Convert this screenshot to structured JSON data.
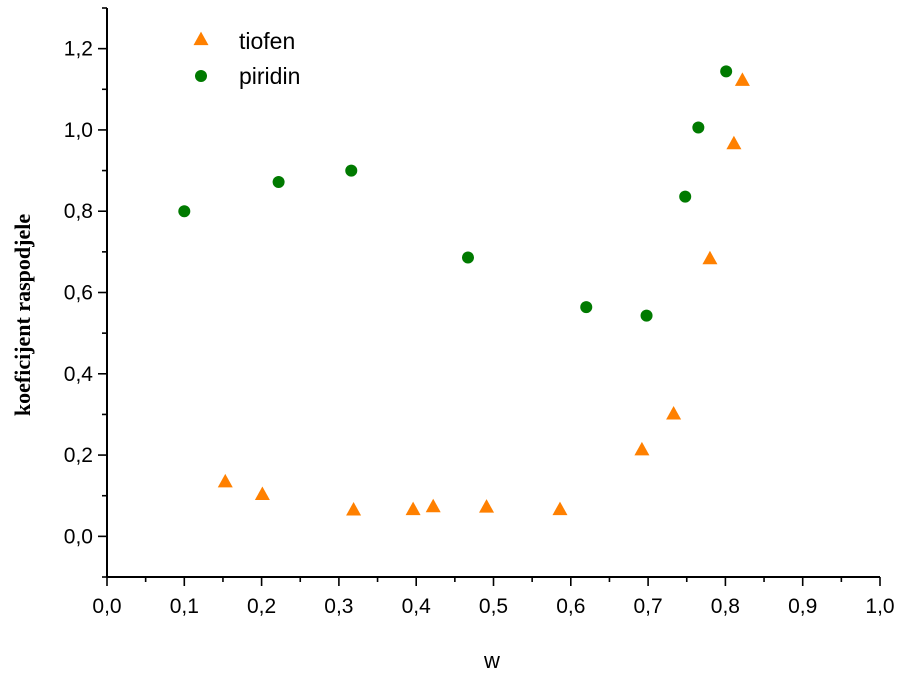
{
  "chart_data": {
    "type": "scatter",
    "title": "",
    "xlabel": "w",
    "ylabel": "koeficijent raspodjele",
    "xlim": [
      0.0,
      1.0
    ],
    "ylim": [
      -0.1,
      1.3
    ],
    "x_ticks": [
      "0,0",
      "0,1",
      "0,2",
      "0,3",
      "0,4",
      "0,5",
      "0,6",
      "0,7",
      "0,8",
      "0,9",
      "1,0"
    ],
    "y_ticks": [
      "0,0",
      "0,2",
      "0,4",
      "0,6",
      "0,8",
      "1,0",
      "1,2"
    ],
    "grid": false,
    "legend_position": "top-left",
    "series": [
      {
        "name": "tiofen",
        "marker": "triangle",
        "color": "#FF8000",
        "points": [
          [
            0.153,
            0.133
          ],
          [
            0.201,
            0.102
          ],
          [
            0.319,
            0.064
          ],
          [
            0.396,
            0.065
          ],
          [
            0.422,
            0.072
          ],
          [
            0.491,
            0.071
          ],
          [
            0.586,
            0.065
          ],
          [
            0.692,
            0.212
          ],
          [
            0.733,
            0.3
          ],
          [
            0.78,
            0.682
          ],
          [
            0.811,
            0.965
          ],
          [
            0.822,
            1.121
          ]
        ]
      },
      {
        "name": "piridin",
        "marker": "circle",
        "color": "#007A00",
        "points": [
          [
            0.1,
            0.8
          ],
          [
            0.222,
            0.872
          ],
          [
            0.316,
            0.9
          ],
          [
            0.467,
            0.686
          ],
          [
            0.62,
            0.564
          ],
          [
            0.698,
            0.543
          ],
          [
            0.748,
            0.836
          ],
          [
            0.765,
            1.006
          ],
          [
            0.801,
            1.144
          ]
        ]
      }
    ]
  }
}
